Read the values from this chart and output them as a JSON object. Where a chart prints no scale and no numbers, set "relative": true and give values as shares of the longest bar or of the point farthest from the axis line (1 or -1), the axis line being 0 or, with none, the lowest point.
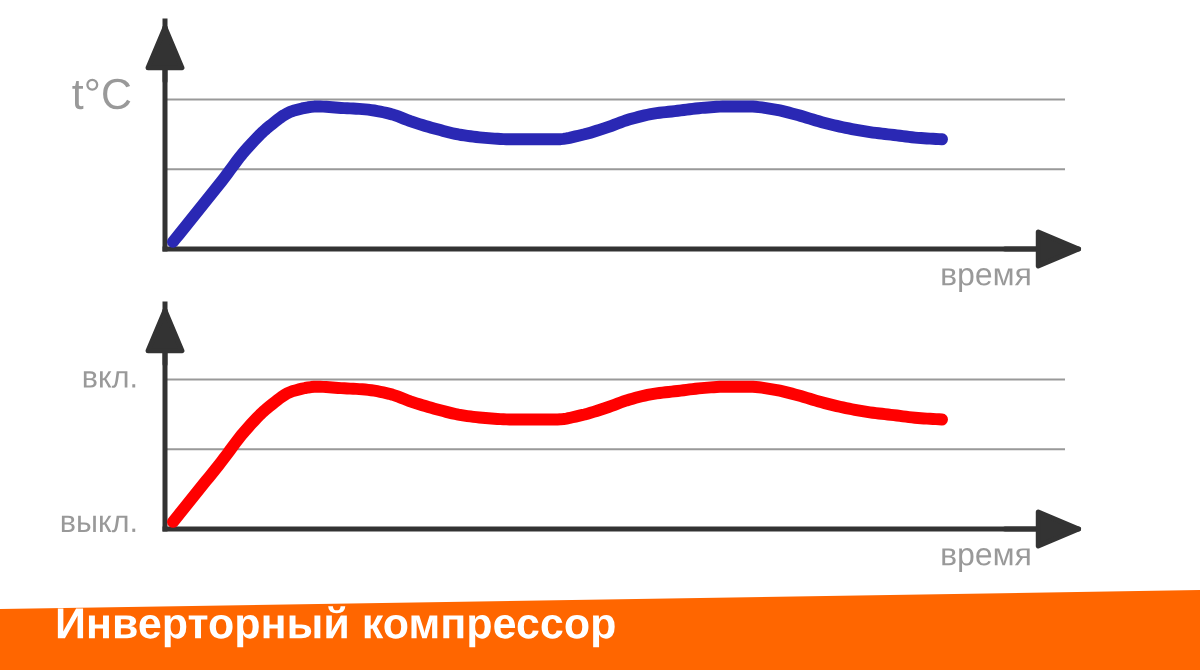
{
  "chart_data": [
    {
      "type": "line",
      "ylabel": "t°C",
      "xlabel": "время",
      "relative": true,
      "categories": [
        null,
        null,
        null,
        null,
        null,
        null,
        null,
        null,
        null,
        null,
        null,
        null,
        null,
        null,
        null,
        null,
        null,
        null,
        null,
        null,
        null,
        null,
        null,
        null,
        null,
        null,
        null,
        null,
        null,
        null,
        null,
        null,
        null
      ],
      "series": [
        {
          "color": "#2a28b4",
          "values": [
            0.05,
            0.26,
            0.47,
            0.69,
            0.86,
            0.97,
            1,
            0.99,
            0.98,
            0.95,
            0.89,
            0.84,
            0.8,
            0.78,
            0.77,
            0.77,
            0.77,
            0.8,
            0.85,
            0.91,
            0.95,
            0.97,
            0.99,
            1,
            1,
            0.98,
            0.94,
            0.89,
            0.85,
            0.82,
            0.8,
            0.78,
            0.77
          ]
        }
      ],
      "ref_lines": [
        {
          "axis": "y",
          "value": 1.05,
          "color": "#999999"
        },
        {
          "axis": "y",
          "value": 0.56,
          "color": "#999999"
        }
      ]
    },
    {
      "type": "line",
      "title": "Инверторный компрессор",
      "xlabel": "время",
      "relative": true,
      "categories": [
        null,
        null,
        null,
        null,
        null,
        null,
        null,
        null,
        null,
        null,
        null,
        null,
        null,
        null,
        null,
        null,
        null,
        null,
        null,
        null,
        null,
        null,
        null,
        null,
        null,
        null,
        null,
        null,
        null,
        null,
        null,
        null,
        null
      ],
      "series": [
        {
          "color": "#ff0000",
          "values": [
            0.05,
            0.26,
            0.47,
            0.69,
            0.86,
            0.97,
            1,
            0.99,
            0.98,
            0.95,
            0.89,
            0.84,
            0.8,
            0.78,
            0.77,
            0.77,
            0.77,
            0.8,
            0.85,
            0.91,
            0.95,
            0.97,
            0.99,
            1,
            1,
            0.98,
            0.94,
            0.89,
            0.85,
            0.82,
            0.8,
            0.78,
            0.77
          ]
        }
      ],
      "ref_lines": [
        {
          "axis": "y",
          "value": 1.05,
          "label": "вкл.",
          "color": "#999999"
        },
        {
          "axis": "y",
          "value": 0.56,
          "color": "#999999"
        }
      ],
      "annotations": [
        "выкл."
      ]
    }
  ]
}
